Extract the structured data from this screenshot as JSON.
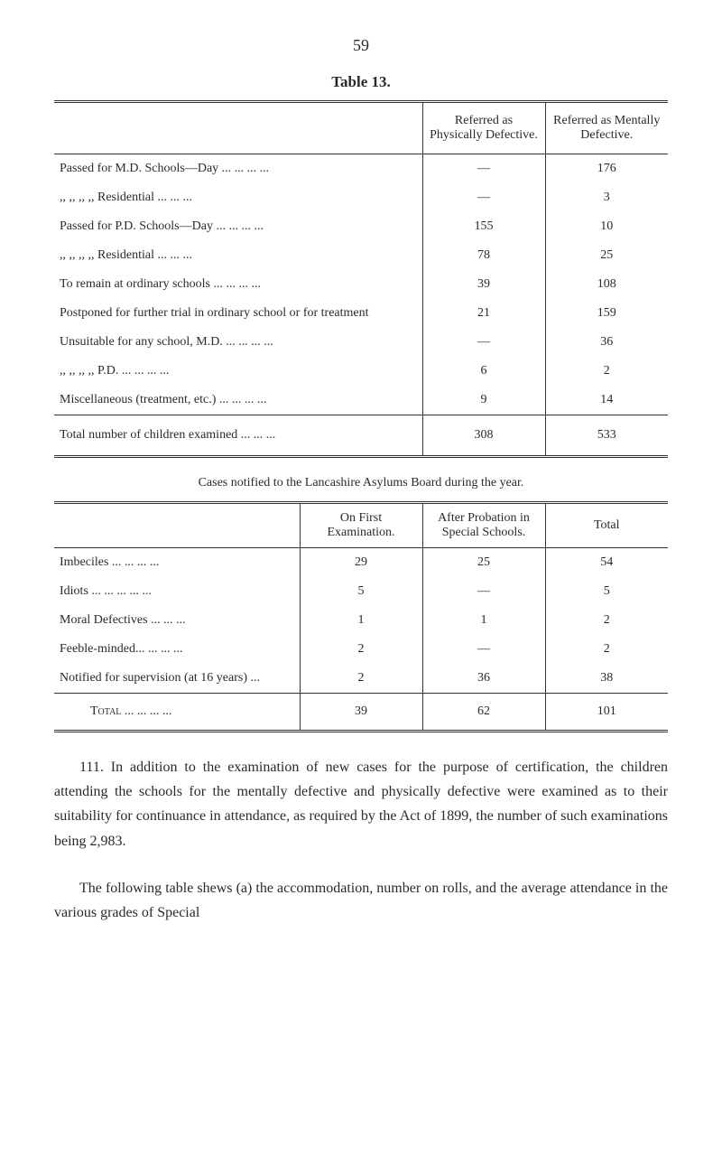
{
  "page_number": "59",
  "table13": {
    "title": "Table 13.",
    "headers": {
      "ref_phys": "Referred as Physically Defective.",
      "ref_ment": "Referred as Mentally Defective."
    },
    "rows": [
      {
        "desc": "Passed for M.D. Schools—Day   ...   ...   ...   ...",
        "phys": "—",
        "ment": "176"
      },
      {
        "desc": "   ,,      ,,    ,,       ,,        Residential   ...    ...    ...",
        "phys": "—",
        "ment": "3"
      },
      {
        "desc": "Passed for P.D. Schools—Day   ...   ...   ...   ...",
        "phys": "155",
        "ment": "10"
      },
      {
        "desc": "   ,,      ,,    ,,       ,,        Residential   ...    ...    ...",
        "phys": "78",
        "ment": "25"
      },
      {
        "desc": "To remain at ordinary schools   ...    ...    ...    ...",
        "phys": "39",
        "ment": "108"
      },
      {
        "desc": "Postponed for further trial in ordinary school or for treatment",
        "phys": "21",
        "ment": "159"
      },
      {
        "desc": "Unsuitable for any school, M.D. ...    ...    ...    ...",
        "phys": "—",
        "ment": "36"
      },
      {
        "desc": "   ,,         ,,  ,,      ,,     P.D. ...    ...    ...    ...",
        "phys": "6",
        "ment": "2"
      },
      {
        "desc": "Miscellaneous (treatment, etc.)   ...   ...   ...   ...",
        "phys": "9",
        "ment": "14"
      }
    ],
    "total": {
      "desc": "Total number of children examined       ...    ...    ...",
      "phys": "308",
      "ment": "533"
    }
  },
  "cases": {
    "title": "Cases notified to the Lancashire Asylums Board during the year.",
    "headers": {
      "first": "On First Examination.",
      "after": "After Probation in Special Schools.",
      "total": "Total"
    },
    "rows": [
      {
        "label": "Imbeciles        ...    ...    ...    ...",
        "first": "29",
        "after": "25",
        "total": "54"
      },
      {
        "label": "Idiots    ...    ...    ...    ...    ...",
        "first": "5",
        "after": "—",
        "total": "5"
      },
      {
        "label": "Moral Defectives        ...    ...    ...",
        "first": "1",
        "after": "1",
        "total": "2"
      },
      {
        "label": "Feeble-minded...        ...    ...    ...",
        "first": "2",
        "after": "—",
        "total": "2"
      },
      {
        "label": "Notified for supervision (at 16 years) ...",
        "first": "2",
        "after": "36",
        "total": "38"
      }
    ],
    "total": {
      "label": "Total     ...    ...    ...    ...",
      "first": "39",
      "after": "62",
      "total": "101"
    }
  },
  "para1": "111.   In addition to the examination of new cases for the purpose of certification, the children attending the schools for the mentally defective and physically defective were examined as to their suitability for continuance in attendance, as required by the Act of 1899, the number of such examinations being 2,983.",
  "para2": "The following table shews (a) the accommodation, number on rolls, and the average attendance in the various grades of Special"
}
